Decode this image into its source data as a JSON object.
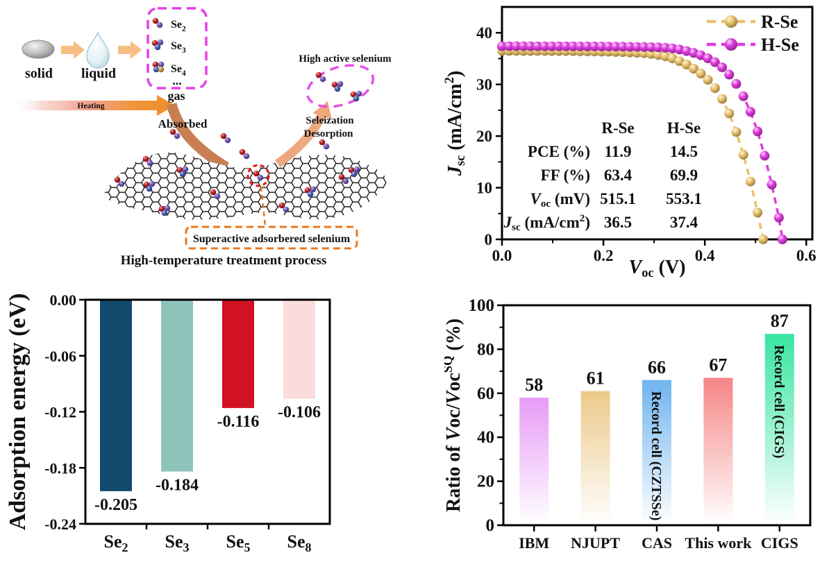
{
  "schematic": {
    "solid_label": "solid",
    "liquid_label": "liquid",
    "gas_label": "gas",
    "heating_label": "Heating",
    "absorbed_label": "Absorbed",
    "species": [
      {
        "base": "Se",
        "sub": "2"
      },
      {
        "base": "Se",
        "sub": "3"
      },
      {
        "base": "Se",
        "sub": "4"
      }
    ],
    "ellipsis": "...",
    "high_active_label": "High active selenium",
    "seleization_label": "Seleization",
    "desorption_label": "Desorption",
    "superactive_label": "Superactive adsorbered selenium",
    "caption": "High-temperature treatment process"
  },
  "colors": {
    "r_se": "#E9C169",
    "h_se": "#DF3BDF",
    "heat_orange": "#F0912C",
    "dashed_magenta": "#E53EE5",
    "dashed_orange": "#E8781E",
    "dashed_red": "#E51212"
  },
  "chart_data": [
    {
      "id": "jv",
      "type": "line",
      "xlabel_parts": [
        {
          "t": "V",
          "s": "i"
        },
        {
          "t": "oc",
          "s": "sub"
        },
        {
          "t": " (V)",
          "s": ""
        }
      ],
      "ylabel_parts": [
        {
          "t": "J",
          "s": "i"
        },
        {
          "t": "sc",
          "s": "sub"
        },
        {
          "t": " (mA/cm",
          "s": ""
        },
        {
          "t": "2",
          "s": "sup"
        },
        {
          "t": ")",
          "s": ""
        }
      ],
      "xlim": [
        0,
        0.612
      ],
      "ylim": [
        0,
        45
      ],
      "grid": false,
      "legend_position": "top-right",
      "xticks": [
        {
          "v": 0,
          "l": "0.0"
        },
        {
          "v": 0.2,
          "l": "0.2"
        },
        {
          "v": 0.4,
          "l": "0.4"
        },
        {
          "v": 0.6,
          "l": "0.6"
        }
      ],
      "xminor": [
        0.1,
        0.3,
        0.5
      ],
      "yticks": [
        {
          "v": 0,
          "l": "0"
        },
        {
          "v": 10,
          "l": "10"
        },
        {
          "v": 20,
          "l": "20"
        },
        {
          "v": 30,
          "l": "30"
        },
        {
          "v": 40,
          "l": "40"
        }
      ],
      "yminor": [
        5,
        15,
        25,
        35
      ],
      "series": [
        {
          "name": "R-Se",
          "color": "#E9C169",
          "points": [
            [
              0.0,
              36.5
            ],
            [
              0.014,
              36.5
            ],
            [
              0.028,
              36.5
            ],
            [
              0.042,
              36.49
            ],
            [
              0.056,
              36.49
            ],
            [
              0.07,
              36.48
            ],
            [
              0.084,
              36.48
            ],
            [
              0.098,
              36.47
            ],
            [
              0.112,
              36.46
            ],
            [
              0.126,
              36.45
            ],
            [
              0.14,
              36.44
            ],
            [
              0.154,
              36.42
            ],
            [
              0.168,
              36.4
            ],
            [
              0.182,
              36.38
            ],
            [
              0.196,
              36.35
            ],
            [
              0.21,
              36.32
            ],
            [
              0.224,
              36.28
            ],
            [
              0.238,
              36.24
            ],
            [
              0.252,
              36.19
            ],
            [
              0.266,
              36.13
            ],
            [
              0.28,
              36.06
            ],
            [
              0.294,
              35.9
            ],
            [
              0.308,
              35.7
            ],
            [
              0.322,
              35.45
            ],
            [
              0.336,
              35.05
            ],
            [
              0.35,
              34.5
            ],
            [
              0.364,
              33.85
            ],
            [
              0.378,
              33.05
            ],
            [
              0.392,
              32.1
            ],
            [
              0.406,
              30.9
            ],
            [
              0.42,
              29.3
            ],
            [
              0.434,
              27.2
            ],
            [
              0.448,
              24.4
            ],
            [
              0.462,
              20.8
            ],
            [
              0.476,
              16.4
            ],
            [
              0.49,
              11.2
            ],
            [
              0.504,
              5.2
            ],
            [
              0.515,
              0
            ]
          ]
        },
        {
          "name": "H-Se",
          "color": "#DF3BDF",
          "points": [
            [
              0.0,
              37.4
            ],
            [
              0.014,
              37.4
            ],
            [
              0.028,
              37.4
            ],
            [
              0.042,
              37.4
            ],
            [
              0.056,
              37.4
            ],
            [
              0.07,
              37.39
            ],
            [
              0.084,
              37.39
            ],
            [
              0.098,
              37.39
            ],
            [
              0.112,
              37.38
            ],
            [
              0.126,
              37.38
            ],
            [
              0.14,
              37.37
            ],
            [
              0.154,
              37.36
            ],
            [
              0.168,
              37.36
            ],
            [
              0.182,
              37.35
            ],
            [
              0.196,
              37.34
            ],
            [
              0.21,
              37.33
            ],
            [
              0.224,
              37.31
            ],
            [
              0.238,
              37.3
            ],
            [
              0.252,
              37.28
            ],
            [
              0.266,
              37.26
            ],
            [
              0.28,
              37.24
            ],
            [
              0.294,
              37.21
            ],
            [
              0.308,
              37.18
            ],
            [
              0.322,
              37.1
            ],
            [
              0.336,
              36.95
            ],
            [
              0.35,
              36.75
            ],
            [
              0.364,
              36.45
            ],
            [
              0.378,
              36.1
            ],
            [
              0.392,
              35.65
            ],
            [
              0.406,
              35.05
            ],
            [
              0.42,
              34.3
            ],
            [
              0.434,
              33.3
            ],
            [
              0.448,
              31.9
            ],
            [
              0.462,
              30.1
            ],
            [
              0.476,
              27.7
            ],
            [
              0.49,
              24.7
            ],
            [
              0.504,
              20.9
            ],
            [
              0.518,
              16.2
            ],
            [
              0.532,
              10.6
            ],
            [
              0.546,
              4.2
            ],
            [
              0.553,
              0
            ]
          ]
        }
      ],
      "inset_table": {
        "col_headers": [
          "R-Se",
          "H-Se"
        ],
        "rows": [
          {
            "label_parts": [
              {
                "t": "PCE (%)",
                "s": ""
              }
            ],
            "values": [
              "11.9",
              "14.5"
            ]
          },
          {
            "label_parts": [
              {
                "t": "FF (%)",
                "s": ""
              }
            ],
            "values": [
              "63.4",
              "69.9"
            ]
          },
          {
            "label_parts": [
              {
                "t": "V",
                "s": "i"
              },
              {
                "t": "oc",
                "s": "sub"
              },
              {
                "t": " (mV)",
                "s": ""
              }
            ],
            "values": [
              "515.1",
              "553.1"
            ]
          },
          {
            "label_parts": [
              {
                "t": "J",
                "s": "i"
              },
              {
                "t": "sc",
                "s": "sub"
              },
              {
                "t": " (mA/cm",
                "s": ""
              },
              {
                "t": "2",
                "s": "sup"
              },
              {
                "t": ")",
                "s": ""
              }
            ],
            "values": [
              "36.5",
              "37.4"
            ]
          }
        ]
      }
    },
    {
      "id": "adsorption",
      "type": "bar",
      "ylabel": "Adsorption energy (eV)",
      "categories_parts": [
        {
          "base": "Se",
          "sub": "2"
        },
        {
          "base": "Se",
          "sub": "3"
        },
        {
          "base": "Se",
          "sub": "5"
        },
        {
          "base": "Se",
          "sub": "8"
        }
      ],
      "values": [
        -0.205,
        -0.184,
        -0.116,
        -0.106
      ],
      "value_labels": [
        "-0.205",
        "-0.184",
        "-0.116",
        "-0.106"
      ],
      "bar_colors": [
        "#124A6E",
        "#8EC3BA",
        "#D01223",
        "#FADCDC"
      ],
      "ylim": [
        -0.24,
        0
      ],
      "grid": false,
      "yticks": [
        {
          "v": 0,
          "l": "0.00"
        },
        {
          "v": -0.06,
          "l": "-0.06"
        },
        {
          "v": -0.12,
          "l": "-0.12"
        },
        {
          "v": -0.18,
          "l": "-0.18"
        },
        {
          "v": -0.24,
          "l": "-0.24"
        }
      ]
    },
    {
      "id": "ratio",
      "type": "bar",
      "ylabel_parts": [
        {
          "t": "Ratio of ",
          "s": ""
        },
        {
          "t": "V",
          "s": "i"
        },
        {
          "t": "oc/",
          "s": ""
        },
        {
          "t": "V",
          "s": "i"
        },
        {
          "t": "oc",
          "s": ""
        },
        {
          "t": "SQ",
          "s": "sup"
        },
        {
          "t": " (%)",
          "s": ""
        }
      ],
      "categories": [
        "IBM",
        "NJUPT",
        "CAS",
        "This work",
        "CIGS"
      ],
      "values": [
        58,
        61,
        66,
        67,
        87
      ],
      "value_labels": [
        "58",
        "61",
        "66",
        "67",
        "87"
      ],
      "bar_top_colors": [
        "#E79CF5",
        "#EBC98A",
        "#6FB4EF",
        "#F58585",
        "#37E5A1"
      ],
      "bar_annotations": [
        "",
        "",
        "Record cell (CZTSSe)",
        "",
        "Record cell (CIGS)"
      ],
      "ylim": [
        0,
        100
      ],
      "grid": false,
      "yticks": [
        {
          "v": 0,
          "l": "0"
        },
        {
          "v": 20,
          "l": "20"
        },
        {
          "v": 40,
          "l": "40"
        },
        {
          "v": 60,
          "l": "60"
        },
        {
          "v": 80,
          "l": "80"
        },
        {
          "v": 100,
          "l": "100"
        }
      ],
      "yminor": [
        10,
        30,
        50,
        70,
        90
      ]
    }
  ]
}
